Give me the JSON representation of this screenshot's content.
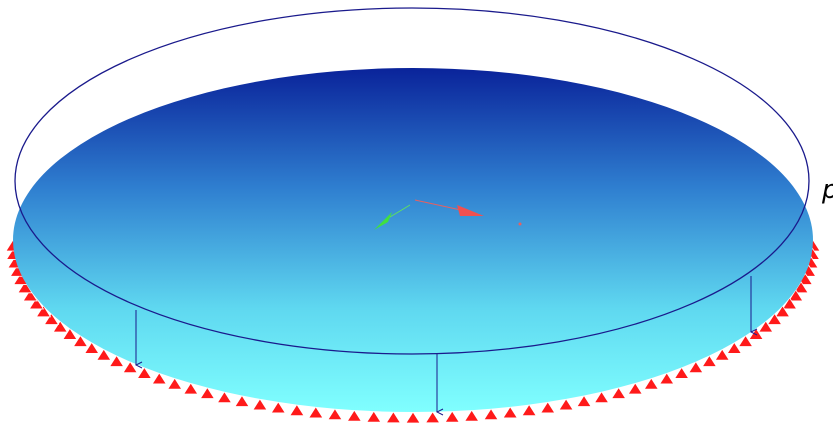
{
  "label": "p"
}
